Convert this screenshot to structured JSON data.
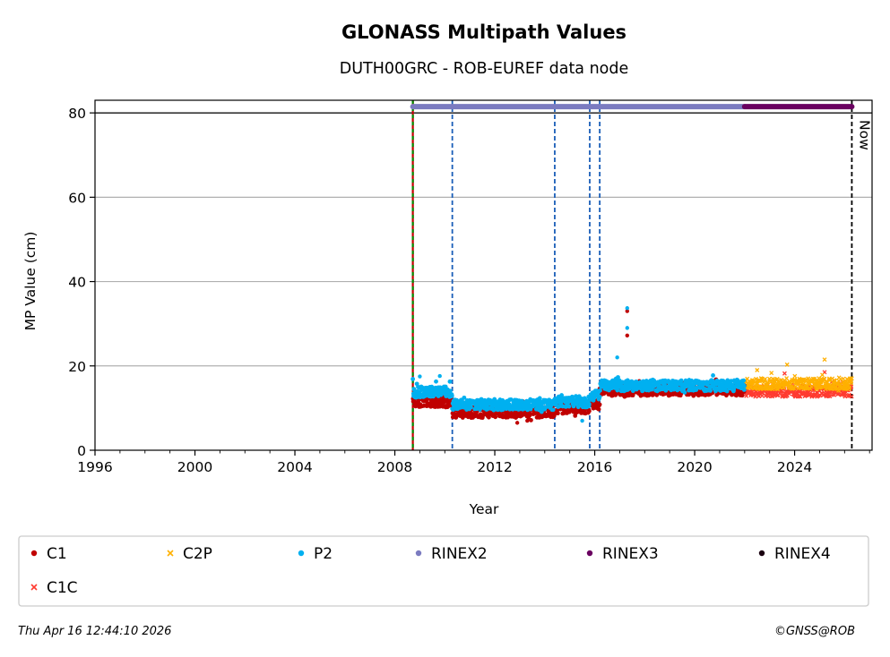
{
  "chart_data": {
    "type": "scatter",
    "title": "GLONASS Multipath Values",
    "subtitle": "DUTH00GRC - ROB-EUREF data node",
    "xlabel": "Year",
    "ylabel": "MP Value (cm)",
    "xlim": [
      1996,
      2027.1
    ],
    "ylim": [
      0,
      83
    ],
    "x_ticks": [
      1996,
      2000,
      2004,
      2008,
      2012,
      2016,
      2020,
      2024
    ],
    "y_ticks": [
      0,
      20,
      40,
      60,
      80
    ],
    "grid": "horizontal",
    "legend_position": "bottom",
    "now_label": "Now",
    "now_year": 2026.29,
    "start_line_year": 2008.72,
    "event_lines": [
      2010.3,
      2014.4,
      2015.8,
      2016.2
    ],
    "series": [
      {
        "name": "C1",
        "color": "#c00000",
        "marker": "circle",
        "segments": [
          {
            "x0": 2008.72,
            "x1": 2010.3,
            "level": 11.5
          },
          {
            "x0": 2010.3,
            "x1": 2014.4,
            "level": 9.0
          },
          {
            "x0": 2014.4,
            "x1": 2015.8,
            "level": 10.0
          },
          {
            "x0": 2015.8,
            "x1": 2016.2,
            "level": 11.0
          },
          {
            "x0": 2016.2,
            "x1": 2022.0,
            "level": 14.2
          }
        ],
        "outliers": [
          [
            2017.3,
            33.0
          ],
          [
            2017.3,
            27.2
          ],
          [
            2012.9,
            6.5
          ],
          [
            2013.3,
            7.0
          ]
        ]
      },
      {
        "name": "C2P",
        "color": "#ffb000",
        "marker": "x",
        "segments": [
          {
            "x0": 2022.0,
            "x1": 2026.29,
            "level": 15.8
          }
        ],
        "outliers": [
          [
            2023.7,
            20.3
          ],
          [
            2025.2,
            21.5
          ],
          [
            2022.5,
            19.0
          ]
        ]
      },
      {
        "name": "P2",
        "color": "#00b0f0",
        "marker": "circle",
        "segments": [
          {
            "x0": 2008.72,
            "x1": 2010.3,
            "level": 13.8
          },
          {
            "x0": 2010.3,
            "x1": 2014.4,
            "level": 10.8
          },
          {
            "x0": 2014.4,
            "x1": 2015.8,
            "level": 11.5
          },
          {
            "x0": 2015.8,
            "x1": 2016.2,
            "level": 13.0
          },
          {
            "x0": 2016.2,
            "x1": 2022.0,
            "level": 15.3
          }
        ],
        "outliers": [
          [
            2017.3,
            33.7
          ],
          [
            2017.3,
            29.0
          ],
          [
            2016.9,
            22.0
          ],
          [
            2009.0,
            17.5
          ],
          [
            2009.8,
            17.6
          ],
          [
            2015.5,
            7.0
          ]
        ]
      },
      {
        "name": "RINEX2",
        "color": "#7b7bc0",
        "marker": "circle",
        "bar": [
          2008.72,
          2022.0
        ],
        "bar_y": 81.5
      },
      {
        "name": "RINEX3",
        "color": "#6a0060",
        "marker": "circle",
        "bar": [
          2022.0,
          2026.29
        ],
        "bar_y": 81.5
      },
      {
        "name": "RINEX4",
        "color": "#1a0010",
        "marker": "circle"
      },
      {
        "name": "C1C",
        "color": "#ff3b30",
        "marker": "x",
        "segments": [
          {
            "x0": 2022.0,
            "x1": 2026.29,
            "level": 14.0
          }
        ],
        "outliers": [
          [
            2023.6,
            18.2
          ],
          [
            2025.2,
            18.5
          ]
        ]
      }
    ]
  },
  "footer": {
    "timestamp": "Thu Apr 16 12:44:10 2026",
    "credit": "©GNSS@ROB"
  }
}
